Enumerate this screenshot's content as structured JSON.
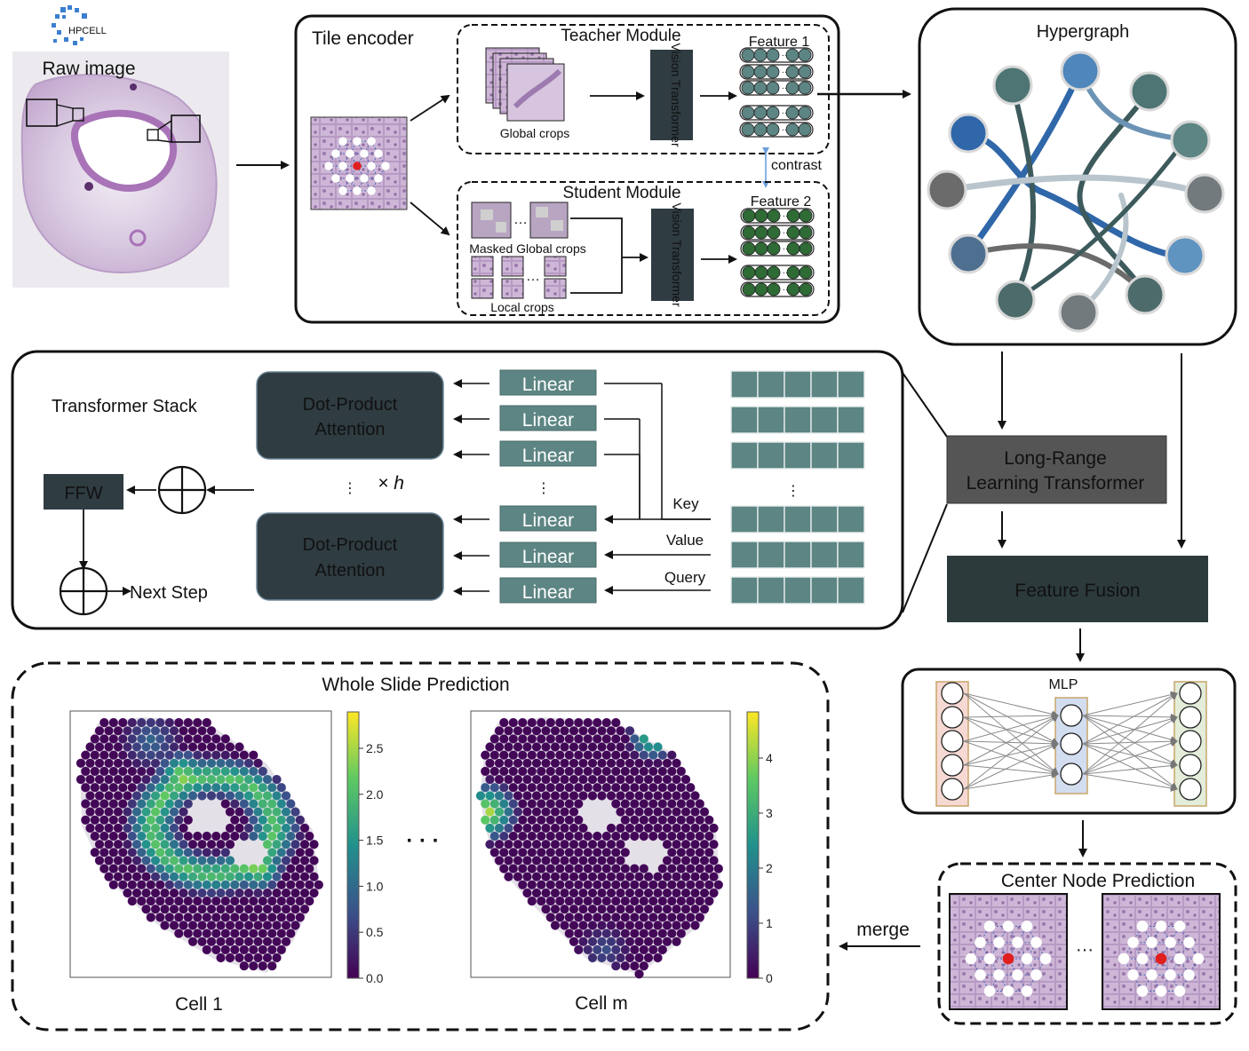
{
  "logo": {
    "text": "HPCELL"
  },
  "raw_image": {
    "title": "Raw image"
  },
  "tile_encoder": {
    "title": "Tile encoder",
    "teacher": {
      "title": "Teacher Module",
      "crops_label": "Global crops",
      "vit_label": "Vision Transformer",
      "feature_label": "Feature 1"
    },
    "contrast_label": "contrast",
    "student": {
      "title": "Student Module",
      "masked_label": "Masked Global crops",
      "local_label": "Local crops",
      "vit_label": "Vision Transformer",
      "feature_label": "Feature 2"
    }
  },
  "hypergraph": {
    "title": "Hypergraph"
  },
  "transformer_stack": {
    "title": "Transformer Stack",
    "attention_label_1": "Dot-Product",
    "attention_label_2": "Attention",
    "heads_label": "× h",
    "linear_label": "Linear",
    "ffw_label": "FFW",
    "next_step_label": "Next Step",
    "key_label": "Key",
    "value_label": "Value",
    "query_label": "Query",
    "ellipsis": "⋮"
  },
  "long_range": {
    "line1": "Long-Range",
    "line2": "Learning Transformer"
  },
  "feature_fusion": {
    "label": "Feature Fusion"
  },
  "mlp": {
    "label": "MLP"
  },
  "center_node": {
    "title": "Center Node Prediction",
    "ellipsis": "···"
  },
  "merge_label": "merge",
  "whole_slide": {
    "title": "Whole Slide Prediction",
    "ellipsis": "· · ·",
    "panel1": {
      "caption": "Cell 1",
      "ticks": [
        "2.5",
        "2.0",
        "1.5",
        "1.0",
        "0.5",
        "0.0"
      ]
    },
    "panel2": {
      "caption": "Cell m",
      "ticks": [
        "4",
        "3",
        "2",
        "1",
        "0"
      ]
    }
  },
  "colors": {
    "accent_teal": "#4e7573",
    "dark": "#2f3c42",
    "feature_teacher": "#5c8583",
    "feature_student": "#2e6b35",
    "hyper_blue": "#3a6fa8",
    "viridis_low": "#440154",
    "viridis_high": "#fde725"
  }
}
